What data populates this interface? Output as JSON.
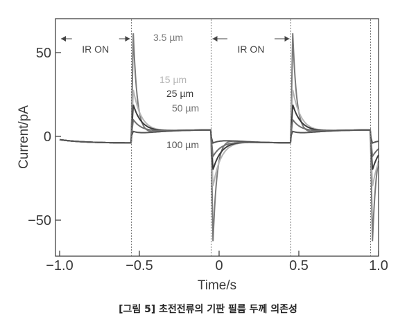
{
  "caption": "[그림 5] 초전전류의 기판 필름 두께 의존성",
  "chart_data": {
    "type": "line",
    "xlabel": "Time/s",
    "ylabel": "Current/pA",
    "xlim": [
      -1.0,
      1.0
    ],
    "ylim": [
      -70,
      70
    ],
    "xticks": [
      -1.0,
      -0.5,
      0,
      0.5,
      1.0
    ],
    "xtick_labels": [
      "−1.0",
      "−0.5",
      "0",
      "0.5",
      "1.0"
    ],
    "yticks": [
      -50,
      0,
      50
    ],
    "ytick_labels": [
      "−50",
      "0",
      "50"
    ],
    "ir_switch_times": [
      -0.55,
      -0.05,
      0.45,
      0.95
    ],
    "annotations": [
      {
        "text": "IR ON",
        "interval": [
          -1.0,
          -0.55
        ]
      },
      {
        "text": "IR ON",
        "interval": [
          -0.05,
          0.45
        ]
      }
    ],
    "grid": false,
    "series": [
      {
        "name": "3.5 µm",
        "color": "#7a7a7a",
        "peak": 62,
        "trough": -63
      },
      {
        "name": "15 µm",
        "color": "#b5b5b5",
        "peak": 28,
        "trough": -30
      },
      {
        "name": "25 µm",
        "color": "#3c3c3c",
        "peak": 19,
        "trough": -20
      },
      {
        "name": "50 µm",
        "color": "#6f6f6f",
        "peak": 10,
        "trough": -12
      },
      {
        "name": "100 µm",
        "color": "#555555",
        "peak": 3,
        "trough": -4
      }
    ]
  }
}
